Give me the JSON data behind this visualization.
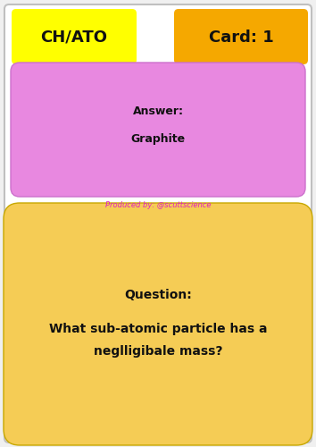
{
  "bg_color": "#f0f0f0",
  "border_color": "#c0c0c0",
  "title_left_text": "CH/ATO",
  "title_left_bg": "#ffff00",
  "title_right_text": "Card: 1",
  "title_right_bg": "#f5a800",
  "answer_box_bg": "#e888e0",
  "answer_label": "Answer:",
  "answer_text": "Graphite",
  "credit_text": "Produced by: @scuttscience",
  "credit_color": "#e020c0",
  "question_box_bg": "#f5cc55",
  "question_label": "Question:",
  "question_line1": "What sub-atomic particle has a",
  "question_line2": "neglligibale mass?",
  "text_color": "#111111",
  "font_size_title": 13,
  "font_size_answer_label": 9,
  "font_size_answer": 9,
  "font_size_credit": 6,
  "font_size_question_label": 10,
  "font_size_question": 10,
  "white_bg": "#ffffff"
}
